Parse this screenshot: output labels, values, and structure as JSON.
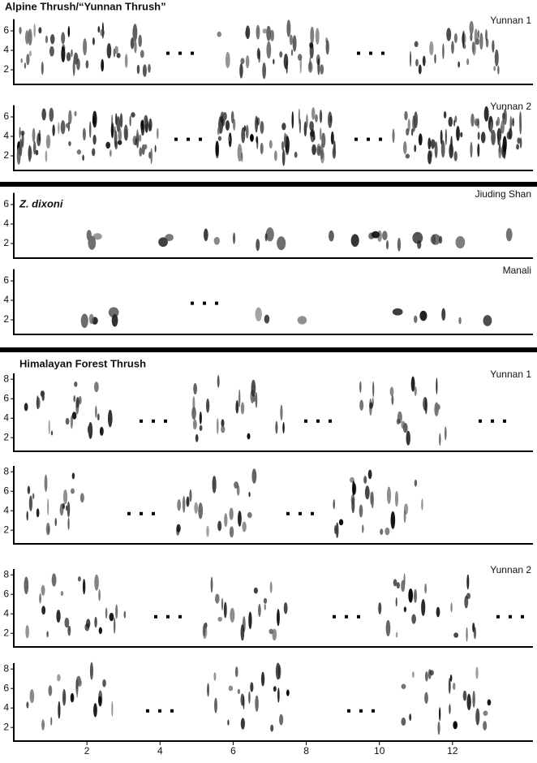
{
  "figure": {
    "sections": [
      {
        "title": "Alpine Thrush/“Yunnan Thrush”",
        "ylim": [
          0.5,
          7.2
        ],
        "yticks": [
          2,
          4,
          6
        ],
        "panels": [
          {
            "label": "Yunnan 1"
          },
          {
            "label": "Yunnan 2"
          }
        ]
      },
      {
        "title": "Z. dixoni",
        "ylim": [
          0.5,
          7.2
        ],
        "yticks": [
          2,
          4,
          6
        ],
        "panels": [
          {
            "label": "Jiuding Shan"
          },
          {
            "label": "Manali"
          }
        ]
      },
      {
        "title": "Himalayan Forest Thrush",
        "ylim": [
          0.6,
          8.6
        ],
        "yticks": [
          2,
          4,
          6,
          8
        ],
        "panels": [
          {
            "label": "Yunnan 1"
          },
          {},
          {
            "label": "Yunnan 2"
          },
          {}
        ]
      }
    ],
    "xlim": [
      0,
      14.2
    ],
    "xticks": [
      2,
      4,
      6,
      8,
      10,
      12
    ]
  }
}
